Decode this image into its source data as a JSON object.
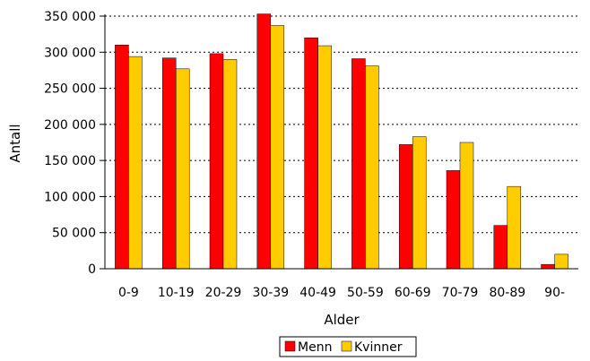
{
  "chart_data": {
    "type": "bar",
    "title": "",
    "xlabel": "Alder",
    "ylabel": "Antall",
    "categories": [
      "0-9",
      "10-19",
      "20-29",
      "30-39",
      "40-49",
      "50-59",
      "60-69",
      "70-79",
      "80-89",
      "90-"
    ],
    "series": [
      {
        "name": "Menn",
        "color": "#ff0000",
        "values": [
          310000,
          292000,
          298000,
          353000,
          320000,
          291000,
          172000,
          136000,
          60000,
          6000
        ]
      },
      {
        "name": "Kvinner",
        "color": "#ffcc00",
        "values": [
          294000,
          277000,
          290000,
          337000,
          309000,
          281000,
          183000,
          175000,
          114000,
          20000
        ]
      }
    ],
    "ylim": [
      0,
      350000
    ],
    "yticks": [
      0,
      50000,
      100000,
      150000,
      200000,
      250000,
      300000,
      350000
    ],
    "ytick_labels": [
      "0",
      "50 000",
      "100 000",
      "150 000",
      "200 000",
      "250 000",
      "300 000",
      "350 000"
    ],
    "grid": "horizontal dotted",
    "legend": "bottom-center"
  }
}
